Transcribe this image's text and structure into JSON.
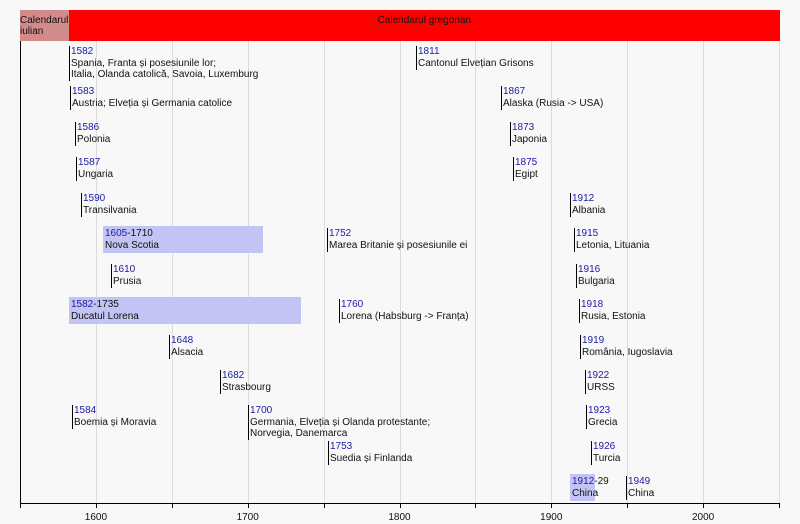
{
  "chart_data": {
    "type": "timeline",
    "xlim": [
      1550,
      2050
    ],
    "ticks": [
      1600,
      1700,
      1800,
      1900,
      2000
    ],
    "grid": true,
    "bands": [
      {
        "label": [
          "Calendarul",
          "iulian"
        ],
        "start": 1550,
        "end": 1582,
        "color": "#d28a8a"
      },
      {
        "label": [
          "Calendarul gregorian"
        ],
        "start": 1582,
        "end": 2050,
        "color": "#ff0000"
      }
    ],
    "events": [
      {
        "row": 0,
        "year": "1582",
        "start": 1582,
        "lines": [
          "Spania, Franta și posesiunile lor;",
          "Italia, Olanda catolică, Savoia, Luxemburg"
        ]
      },
      {
        "row": 0,
        "year": "1811",
        "start": 1811,
        "lines": [
          "Cantonul Elvețian Grisons"
        ]
      },
      {
        "row": 1,
        "year": "1583",
        "start": 1583,
        "lines": [
          "Austria; Elveția și Germania catolice"
        ]
      },
      {
        "row": 1,
        "year": "1867",
        "start": 1867,
        "lines": [
          "Alaska (Rusia -> USA)"
        ]
      },
      {
        "row": 2,
        "year": "1586",
        "start": 1586,
        "lines": [
          "Polonia"
        ]
      },
      {
        "row": 2,
        "year": "1873",
        "start": 1873,
        "lines": [
          "Japonia"
        ]
      },
      {
        "row": 3,
        "year": "1587",
        "start": 1587,
        "lines": [
          "Ungaria"
        ]
      },
      {
        "row": 3,
        "year": "1875",
        "start": 1875,
        "lines": [
          "Egipt"
        ]
      },
      {
        "row": 4,
        "year": "1590",
        "start": 1590,
        "lines": [
          "Transilvania"
        ]
      },
      {
        "row": 4,
        "year": "1912",
        "start": 1912,
        "lines": [
          "Albania"
        ]
      },
      {
        "row": 5,
        "year": "1605",
        "range_end": "-1710",
        "start": 1605,
        "end": 1710,
        "lines": [
          "Nova Scotia"
        ]
      },
      {
        "row": 5,
        "year": "1752",
        "start": 1752,
        "lines": [
          "Marea Britanie și posesiunile ei"
        ]
      },
      {
        "row": 5,
        "year": "1915",
        "start": 1915,
        "lines": [
          "Letonia, Lituania"
        ]
      },
      {
        "row": 6,
        "year": "1610",
        "start": 1610,
        "lines": [
          "Prusia"
        ]
      },
      {
        "row": 6,
        "year": "1916",
        "start": 1916,
        "lines": [
          "Bulgaria"
        ]
      },
      {
        "row": 7,
        "year": "1582",
        "range_end": "-1735",
        "start": 1582,
        "end": 1735,
        "lines": [
          "Ducatul Lorena"
        ]
      },
      {
        "row": 7,
        "year": "1760",
        "start": 1760,
        "lines": [
          "Lorena (Habsburg -> Franța)"
        ]
      },
      {
        "row": 7,
        "year": "1918",
        "start": 1918,
        "lines": [
          "Rusia, Estonia"
        ]
      },
      {
        "row": 8,
        "year": "1648",
        "start": 1648,
        "lines": [
          "Alsacia"
        ]
      },
      {
        "row": 8,
        "year": "1919",
        "start": 1919,
        "lines": [
          "România, Iugoslavia"
        ]
      },
      {
        "row": 9,
        "year": "1682",
        "start": 1682,
        "lines": [
          "Strasbourg"
        ]
      },
      {
        "row": 9,
        "year": "1922",
        "start": 1922,
        "lines": [
          "URSS"
        ]
      },
      {
        "row": 10,
        "year": "1584",
        "start": 1584,
        "lines": [
          "Boemia și Moravia"
        ]
      },
      {
        "row": 10,
        "year": "1700",
        "start": 1700,
        "lines": [
          "Germania, Elveția și Olanda protestante;",
          "Norvegia, Danemarca"
        ]
      },
      {
        "row": 10,
        "year": "1923",
        "start": 1923,
        "lines": [
          "Grecia"
        ]
      },
      {
        "row": 11,
        "year": "1753",
        "start": 1753,
        "lines": [
          "Suedia și Finlanda"
        ]
      },
      {
        "row": 11,
        "year": "1926",
        "start": 1926,
        "lines": [
          "Turcia"
        ]
      },
      {
        "row": 12,
        "year": "1912",
        "range_end": "-29",
        "start": 1912,
        "end": 1929,
        "lines": [
          "China"
        ]
      },
      {
        "row": 12,
        "year": "1949",
        "start": 1949,
        "lines": [
          "China"
        ]
      }
    ]
  }
}
